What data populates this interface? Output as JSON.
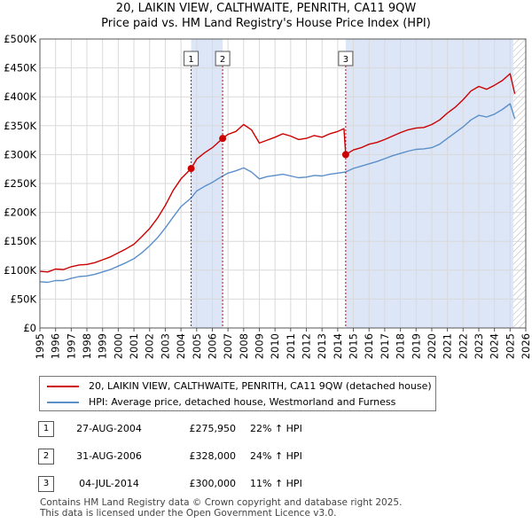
{
  "title_line1": "20, LAIKIN VIEW, CALTHWAITE, PENRITH, CA11 9QW",
  "title_line2": "Price paid vs. HM Land Registry's House Price Index (HPI)",
  "colors": {
    "property": "#cc0000",
    "hpi": "#5b8fc9",
    "shade": "#dde6f7",
    "grid": "#d9d9d9"
  },
  "chart_data": {
    "type": "line",
    "title": "20, LAIKIN VIEW, CALTHWAITE, PENRITH, CA11 9QW",
    "subtitle": "Price paid vs. HM Land Registry's House Price Index (HPI)",
    "xlabel": "",
    "ylabel": "",
    "xlim": [
      1995.0,
      2026.0
    ],
    "ylim": [
      0,
      500000
    ],
    "grid": true,
    "y_ticks": [
      0,
      50000,
      100000,
      150000,
      200000,
      250000,
      300000,
      350000,
      400000,
      450000,
      500000
    ],
    "y_tick_labels": [
      "£0",
      "£50K",
      "£100K",
      "£150K",
      "£200K",
      "£250K",
      "£300K",
      "£350K",
      "£400K",
      "£450K",
      "£500K"
    ],
    "x_ticks": [
      "1995",
      "1996",
      "1997",
      "1998",
      "1999",
      "2000",
      "2001",
      "2002",
      "2003",
      "2004",
      "2005",
      "2006",
      "2007",
      "2008",
      "2009",
      "2010",
      "2011",
      "2012",
      "2013",
      "2014",
      "2015",
      "2016",
      "2017",
      "2018",
      "2019",
      "2020",
      "2021",
      "2022",
      "2023",
      "2024",
      "2025",
      "2026"
    ],
    "shaded_ranges": [
      [
        2004.65,
        2006.66
      ],
      [
        2014.51,
        2025.2
      ]
    ],
    "hatched_from": 2025.2,
    "series": [
      {
        "name": "20, LAIKIN VIEW, CALTHWAITE, PENRITH, CA11 9QW (detached house)",
        "x": [
          1995.0,
          1995.5,
          1996.0,
          1996.5,
          1997.0,
          1997.5,
          1998.0,
          1998.5,
          1999.0,
          1999.5,
          2000.0,
          2000.5,
          2001.0,
          2001.5,
          2002.0,
          2002.5,
          2003.0,
          2003.5,
          2004.0,
          2004.65,
          2005.0,
          2005.5,
          2006.0,
          2006.66,
          2007.0,
          2007.5,
          2008.0,
          2008.5,
          2009.0,
          2009.5,
          2010.0,
          2010.5,
          2011.0,
          2011.5,
          2012.0,
          2012.5,
          2013.0,
          2013.5,
          2014.0,
          2014.4,
          2014.51,
          2015.0,
          2015.5,
          2016.0,
          2016.5,
          2017.0,
          2017.5,
          2018.0,
          2018.5,
          2019.0,
          2019.5,
          2020.0,
          2020.5,
          2021.0,
          2021.5,
          2022.0,
          2022.5,
          2023.0,
          2023.5,
          2024.0,
          2024.5,
          2025.0,
          2025.3
        ],
        "values": [
          98000,
          97000,
          102000,
          101000,
          106000,
          109000,
          110000,
          113000,
          118000,
          123000,
          130000,
          137000,
          145000,
          158000,
          172000,
          190000,
          212000,
          238000,
          258000,
          275950,
          292000,
          303000,
          312000,
          328000,
          335000,
          340000,
          352000,
          343000,
          320000,
          325000,
          330000,
          336000,
          332000,
          326000,
          328000,
          333000,
          330000,
          336000,
          340000,
          345000,
          300000,
          308000,
          312000,
          318000,
          321000,
          326000,
          332000,
          338000,
          343000,
          346000,
          347000,
          352000,
          360000,
          372000,
          382000,
          395000,
          410000,
          418000,
          413000,
          420000,
          428000,
          440000,
          405000
        ]
      },
      {
        "name": "HPI: Average price, detached house, Westmorland and Furness",
        "x": [
          1995.0,
          1995.5,
          1996.0,
          1996.5,
          1997.0,
          1997.5,
          1998.0,
          1998.5,
          1999.0,
          1999.5,
          2000.0,
          2000.5,
          2001.0,
          2001.5,
          2002.0,
          2002.5,
          2003.0,
          2003.5,
          2004.0,
          2004.65,
          2005.0,
          2005.5,
          2006.0,
          2006.66,
          2007.0,
          2007.5,
          2008.0,
          2008.5,
          2009.0,
          2009.5,
          2010.0,
          2010.5,
          2011.0,
          2011.5,
          2012.0,
          2012.5,
          2013.0,
          2013.5,
          2014.0,
          2014.51,
          2015.0,
          2015.5,
          2016.0,
          2016.5,
          2017.0,
          2017.5,
          2018.0,
          2018.5,
          2019.0,
          2019.5,
          2020.0,
          2020.5,
          2021.0,
          2021.5,
          2022.0,
          2022.5,
          2023.0,
          2023.5,
          2024.0,
          2024.5,
          2025.0,
          2025.3
        ],
        "values": [
          80000,
          79000,
          82000,
          82000,
          86000,
          89000,
          90000,
          93000,
          97000,
          101000,
          107000,
          113000,
          120000,
          130000,
          142000,
          156000,
          173000,
          192000,
          210000,
          225000,
          237000,
          245000,
          252000,
          263000,
          268000,
          272000,
          277000,
          270000,
          258000,
          262000,
          264000,
          266000,
          263000,
          260000,
          261000,
          264000,
          263000,
          266000,
          268000,
          270000,
          276000,
          280000,
          284000,
          288000,
          293000,
          298000,
          302000,
          306000,
          309000,
          310000,
          312000,
          318000,
          328000,
          338000,
          348000,
          360000,
          368000,
          365000,
          370000,
          378000,
          388000,
          362000
        ]
      }
    ],
    "annotations": [
      {
        "label": "1",
        "x": 2004.65,
        "y": 275950
      },
      {
        "label": "2",
        "x": 2006.66,
        "y": 328000
      },
      {
        "label": "3",
        "x": 2014.51,
        "y": 300000
      }
    ]
  },
  "legend": {
    "items": [
      {
        "label": "20, LAIKIN VIEW, CALTHWAITE, PENRITH, CA11 9QW (detached house)"
      },
      {
        "label": "HPI: Average price, detached house, Westmorland and Furness"
      }
    ]
  },
  "transactions": [
    {
      "num": "1",
      "date": "27-AUG-2004",
      "price": "£275,950",
      "hpi": "22% ↑ HPI"
    },
    {
      "num": "2",
      "date": "31-AUG-2006",
      "price": "£328,000",
      "hpi": "24% ↑ HPI"
    },
    {
      "num": "3",
      "date": "04-JUL-2014",
      "price": "£300,000",
      "hpi": "11% ↑ HPI"
    }
  ],
  "footer": {
    "line1": "Contains HM Land Registry data © Crown copyright and database right 2025.",
    "line2": "This data is licensed under the Open Government Licence v3.0."
  }
}
